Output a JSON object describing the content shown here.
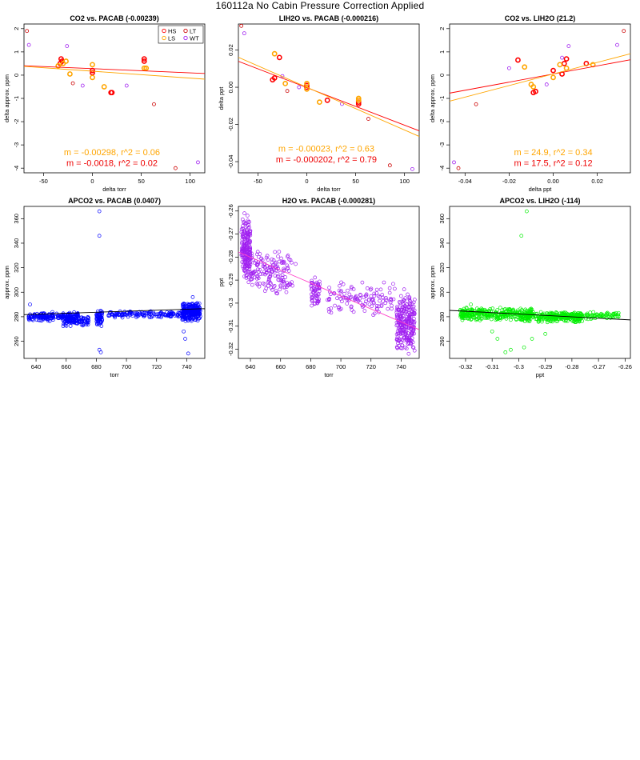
{
  "page_title": "160112a   No Cabin Pressure Correction Applied",
  "chart_data": [
    {
      "type": "scatter",
      "title": "CO2 vs. PACAB (-0.00239)",
      "xlabel": "delta torr",
      "ylabel": "delta approx. ppm",
      "xlim": [
        -70,
        115
      ],
      "ylim": [
        -4.2,
        2.2
      ],
      "xticks": [
        -50,
        0,
        50,
        100
      ],
      "yticks": [
        -4,
        -3,
        -2,
        -1,
        0,
        1,
        2
      ],
      "legend": {
        "position": "top-right",
        "entries": [
          {
            "name": "HS",
            "color": "#ff0000"
          },
          {
            "name": "LT",
            "color": "#cc0000"
          },
          {
            "name": "LS",
            "color": "#ffa500"
          },
          {
            "name": "WT",
            "color": "#a020f0"
          }
        ]
      },
      "series": [
        {
          "name": "HS",
          "color": "#ff0000",
          "points": [
            [
              -32,
              0.7
            ],
            [
              -33,
              0.5
            ],
            [
              0,
              0.1
            ],
            [
              0,
              0.2
            ],
            [
              53,
              0.6
            ],
            [
              53,
              0.7
            ],
            [
              20,
              -0.75
            ],
            [
              19,
              -0.75
            ],
            [
              -31,
              0.6
            ]
          ]
        },
        {
          "name": "LS",
          "color": "#ffa500",
          "points": [
            [
              -35,
              0.4
            ],
            [
              -27,
              0.6
            ],
            [
              -23,
              0.05
            ],
            [
              0,
              0.45
            ],
            [
              0,
              -0.1
            ],
            [
              12,
              -0.5
            ],
            [
              53,
              0.3
            ],
            [
              55,
              0.3
            ],
            [
              -30,
              0.5
            ]
          ]
        },
        {
          "name": "LT",
          "color": "#cc0000",
          "points": [
            [
              -67,
              1.9
            ],
            [
              -20,
              -0.35
            ],
            [
              63,
              -1.25
            ],
            [
              85,
              -4.0
            ]
          ]
        },
        {
          "name": "WT",
          "color": "#a020f0",
          "points": [
            [
              -65,
              1.3
            ],
            [
              -26,
              1.25
            ],
            [
              -10,
              -0.45
            ],
            [
              35,
              -0.45
            ],
            [
              108,
              -3.75
            ]
          ]
        }
      ],
      "fits": [
        {
          "color": "#ff0000",
          "intercept": 0.28,
          "slope": -0.0018
        },
        {
          "color": "#ffa500",
          "intercept": 0.17,
          "slope": -0.00298
        }
      ],
      "annotations": [
        {
          "text": "m = -0.00298, r^2 = 0.06",
          "color": "#ffa500",
          "x": 20,
          "y": -3.45
        },
        {
          "text": "m = -0.0018, r^2 = 0.02",
          "color": "#ee0000",
          "x": 20,
          "y": -3.9
        }
      ]
    },
    {
      "type": "scatter",
      "title": "LIH2O vs. PACAB (-0.000216)",
      "xlabel": "delta torr",
      "ylabel": "delta ppt",
      "xlim": [
        -70,
        115
      ],
      "ylim": [
        -0.046,
        0.034
      ],
      "xticks": [
        -50,
        0,
        50,
        100
      ],
      "yticks": [
        -0.04,
        -0.02,
        0,
        0.02
      ],
      "yticklabels": [
        "-0.04",
        "-0.02",
        "0.00",
        "0.02"
      ],
      "series": [
        {
          "name": "HS",
          "color": "#ff0000",
          "points": [
            [
              -33,
              0.005
            ],
            [
              -28,
              0.016
            ],
            [
              0,
              0.001
            ],
            [
              0,
              0.0
            ],
            [
              21,
              -0.007
            ],
            [
              53,
              -0.008
            ],
            [
              53,
              -0.009
            ],
            [
              -35,
              0.004
            ]
          ]
        },
        {
          "name": "LS",
          "color": "#ffa500",
          "points": [
            [
              -33,
              0.018
            ],
            [
              -22,
              0.002
            ],
            [
              0,
              -0.001
            ],
            [
              0,
              0.002
            ],
            [
              13,
              -0.008
            ],
            [
              53,
              -0.006
            ],
            [
              53,
              -0.007
            ]
          ]
        },
        {
          "name": "LT",
          "color": "#cc0000",
          "points": [
            [
              -67,
              0.033
            ],
            [
              -20,
              -0.002
            ],
            [
              63,
              -0.017
            ],
            [
              85,
              -0.042
            ]
          ]
        },
        {
          "name": "WT",
          "color": "#a020f0",
          "points": [
            [
              -64,
              0.029
            ],
            [
              -25,
              0.006
            ],
            [
              -8,
              0.0
            ],
            [
              36,
              -0.009
            ],
            [
              108,
              -0.044
            ]
          ]
        }
      ],
      "fits": [
        {
          "color": "#ff0000",
          "intercept": -0.0002,
          "slope": -0.000202
        },
        {
          "color": "#ffa500",
          "intercept": 0.0,
          "slope": -0.00023
        }
      ],
      "annotations": [
        {
          "text": "m = -0.00023, r^2 = 0.63",
          "color": "#ffa500",
          "x": 20,
          "y": -0.0345
        },
        {
          "text": "m = -0.000202, r^2 = 0.79",
          "color": "#ee0000",
          "x": 20,
          "y": -0.0405
        }
      ]
    },
    {
      "type": "scatter",
      "title": "CO2 vs. LIH2O (21.2)",
      "xlabel": "delta ppt",
      "ylabel": "delta approx. ppm",
      "xlim": [
        -0.047,
        0.035
      ],
      "ylim": [
        -4.2,
        2.2
      ],
      "xticks": [
        -0.04,
        -0.02,
        0,
        0.02
      ],
      "xticklabels": [
        "-0.04",
        "-0.02",
        "0.00",
        "0.02"
      ],
      "yticks": [
        -4,
        -3,
        -2,
        -1,
        0,
        1,
        2
      ],
      "series": [
        {
          "name": "HS",
          "color": "#ff0000",
          "points": [
            [
              -0.016,
              0.65
            ],
            [
              0.0,
              0.2
            ],
            [
              0.006,
              0.7
            ],
            [
              0.005,
              0.5
            ],
            [
              0.015,
              0.5
            ],
            [
              -0.008,
              -0.7
            ],
            [
              -0.009,
              -0.75
            ],
            [
              0.004,
              0.05
            ]
          ]
        },
        {
          "name": "LS",
          "color": "#ffa500",
          "points": [
            [
              -0.013,
              0.35
            ],
            [
              -0.01,
              -0.4
            ],
            [
              0.003,
              0.45
            ],
            [
              0.0,
              -0.1
            ],
            [
              0.018,
              0.45
            ],
            [
              0.006,
              0.3
            ],
            [
              -0.009,
              -0.5
            ]
          ]
        },
        {
          "name": "LT",
          "color": "#cc0000",
          "points": [
            [
              0.032,
              1.9
            ],
            [
              -0.035,
              -1.25
            ],
            [
              -0.043,
              -4.0
            ]
          ]
        },
        {
          "name": "WT",
          "color": "#a020f0",
          "points": [
            [
              0.029,
              1.3
            ],
            [
              0.004,
              0.75
            ],
            [
              -0.02,
              0.3
            ],
            [
              0.007,
              1.25
            ],
            [
              -0.045,
              -3.75
            ],
            [
              -0.003,
              -0.4
            ]
          ]
        }
      ],
      "fits": [
        {
          "color": "#ff0000",
          "intercept": 0.05,
          "slope": 17.5
        },
        {
          "color": "#ffa500",
          "intercept": 0.05,
          "slope": 24.9
        }
      ],
      "annotations": [
        {
          "text": "m = 24.9, r^2 = 0.34",
          "color": "#ffa500",
          "x": 0.0,
          "y": -3.45
        },
        {
          "text": "m = 17.5, r^2 = 0.12",
          "color": "#ee0000",
          "x": 0.0,
          "y": -3.9
        }
      ]
    },
    {
      "type": "scatter",
      "title": "APCO2 vs. PACAB (0.0407)",
      "xlabel": "torr",
      "ylabel": "approx. ppm",
      "xlim": [
        632,
        752
      ],
      "ylim": [
        246,
        370
      ],
      "xticks": [
        640,
        660,
        680,
        700,
        720,
        740
      ],
      "yticks": [
        260,
        280,
        300,
        320,
        340,
        360
      ],
      "color": "#0000ff",
      "clusters": [
        {
          "x": [
            635,
            668
          ],
          "y": [
            276,
            284
          ],
          "n": 200
        },
        {
          "x": [
            658,
            676
          ],
          "y": [
            272,
            281
          ],
          "n": 80
        },
        {
          "x": [
            680,
            684
          ],
          "y": [
            272,
            286
          ],
          "n": 60
        },
        {
          "x": [
            688,
            738
          ],
          "y": [
            279,
            285
          ],
          "n": 140
        },
        {
          "x": [
            737,
            749
          ],
          "y": [
            276,
            292
          ],
          "n": 260
        }
      ],
      "extra_points": [
        [
          682,
          366
        ],
        [
          682,
          346
        ],
        [
          682,
          253
        ],
        [
          683,
          251
        ],
        [
          739,
          262
        ],
        [
          741,
          250
        ],
        [
          738,
          268
        ],
        [
          636,
          290
        ],
        [
          744,
          296
        ]
      ],
      "fits": [
        {
          "color": "#000000",
          "intercept": 256.0,
          "slope": 0.0407
        }
      ]
    },
    {
      "type": "scatter",
      "title": "H2O vs. PACAB (-0.000281)",
      "xlabel": "torr",
      "ylabel": "ppt",
      "xlim": [
        632,
        752
      ],
      "ylim": [
        -0.324,
        -0.258
      ],
      "xticks": [
        640,
        660,
        680,
        700,
        720,
        740
      ],
      "yticks": [
        -0.32,
        -0.31,
        -0.3,
        -0.29,
        -0.28,
        -0.27,
        -0.26
      ],
      "color": "#a020f0",
      "clusters": [
        {
          "x": [
            634,
            640
          ],
          "y": [
            -0.292,
            -0.263
          ],
          "n": 200
        },
        {
          "x": [
            640,
            668
          ],
          "y": [
            -0.297,
            -0.276
          ],
          "n": 160
        },
        {
          "x": [
            680,
            686
          ],
          "y": [
            -0.302,
            -0.288
          ],
          "n": 60
        },
        {
          "x": [
            690,
            736
          ],
          "y": [
            -0.306,
            -0.29
          ],
          "n": 120
        },
        {
          "x": [
            737,
            749
          ],
          "y": [
            -0.322,
            -0.295
          ],
          "n": 260
        }
      ],
      "extra_points": [
        [
          636,
          -0.261
        ],
        [
          638,
          -0.262
        ],
        [
          670,
          -0.283
        ],
        [
          745,
          -0.322
        ],
        [
          742,
          -0.294
        ]
      ],
      "fits": [
        {
          "color": "#ff3ec8",
          "intercept": -0.1002,
          "slope": -0.000281
        }
      ]
    },
    {
      "type": "scatter",
      "title": "APCO2 vs. LIH2O (-114)",
      "xlabel": "ppt",
      "ylabel": "approx. ppm",
      "xlim": [
        -0.326,
        -0.258
      ],
      "ylim": [
        246,
        370
      ],
      "xticks": [
        -0.32,
        -0.31,
        -0.3,
        -0.29,
        -0.28,
        -0.27,
        -0.26
      ],
      "yticks": [
        260,
        280,
        300,
        320,
        340,
        360
      ],
      "color": "#00ee00",
      "clusters": [
        {
          "x": [
            -0.322,
            -0.295
          ],
          "y": [
            276,
            288
          ],
          "n": 320
        },
        {
          "x": [
            -0.298,
            -0.276
          ],
          "y": [
            275,
            284
          ],
          "n": 200
        },
        {
          "x": [
            -0.29,
            -0.262
          ],
          "y": [
            278,
            284
          ],
          "n": 150
        }
      ],
      "extra_points": [
        [
          -0.297,
          366
        ],
        [
          -0.299,
          346
        ],
        [
          -0.303,
          253
        ],
        [
          -0.305,
          251
        ],
        [
          -0.298,
          255
        ],
        [
          -0.308,
          262
        ],
        [
          -0.31,
          268
        ],
        [
          -0.295,
          262
        ],
        [
          -0.318,
          290
        ],
        [
          -0.29,
          266
        ]
      ],
      "fits": [
        {
          "color": "#000000",
          "intercept": 248.0,
          "slope": -114
        }
      ]
    }
  ]
}
